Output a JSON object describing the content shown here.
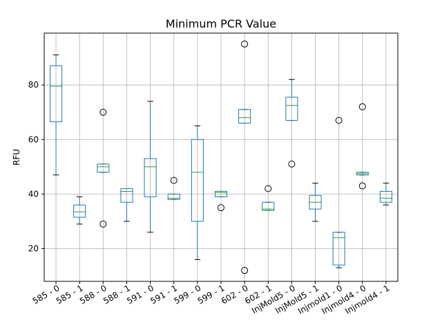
{
  "chart_data": {
    "type": "box",
    "title": "Minimum PCR Value",
    "xlabel": "",
    "ylabel": "RFU",
    "ylim": [
      8,
      99
    ],
    "yticks": [
      20,
      40,
      60,
      80
    ],
    "grid": true,
    "colors": {
      "box": "#1f77b4",
      "median": "#2ca02c",
      "grid": "#b0b0b0",
      "axis": "#000000"
    },
    "categories": [
      "585 - 0",
      "585 - 1",
      "588 - 0",
      "588 - 1",
      "591 - 0",
      "591 - 1",
      "599 - 0",
      "599 - 1",
      "602 - 0",
      "602 - 1",
      "InjMold5 - 0",
      "InjMold5 - 1",
      "Injmold1 - 0",
      "Injmold4 - 0",
      "Injmold4 - 1"
    ],
    "boxes": [
      {
        "whisker_low": 47,
        "q1": 66.5,
        "median": 79.5,
        "q3": 87,
        "whisker_high": 91,
        "outliers": []
      },
      {
        "whisker_low": 29,
        "q1": 31.5,
        "median": 33.5,
        "q3": 36,
        "whisker_high": 39,
        "outliers": []
      },
      {
        "whisker_low": 48,
        "q1": 48,
        "median": 50,
        "q3": 51,
        "whisker_high": 51,
        "outliers": [
          70,
          29
        ]
      },
      {
        "whisker_low": 30,
        "q1": 37,
        "median": 41,
        "q3": 42,
        "whisker_high": 42,
        "outliers": []
      },
      {
        "whisker_low": 26,
        "q1": 39,
        "median": 50,
        "q3": 53,
        "whisker_high": 74,
        "outliers": []
      },
      {
        "whisker_low": 38,
        "q1": 38,
        "median": 38.5,
        "q3": 40,
        "whisker_high": 40,
        "outliers": [
          45
        ]
      },
      {
        "whisker_low": 16,
        "q1": 30,
        "median": 48,
        "q3": 60,
        "whisker_high": 65,
        "outliers": []
      },
      {
        "whisker_low": 39,
        "q1": 39,
        "median": 40.5,
        "q3": 41,
        "whisker_high": 41,
        "outliers": [
          35
        ]
      },
      {
        "whisker_low": 66,
        "q1": 66,
        "median": 68,
        "q3": 71,
        "whisker_high": 71,
        "outliers": [
          95,
          12
        ]
      },
      {
        "whisker_low": 34,
        "q1": 34,
        "median": 34.5,
        "q3": 37,
        "whisker_high": 37,
        "outliers": [
          42
        ]
      },
      {
        "whisker_low": 67,
        "q1": 67,
        "median": 72.5,
        "q3": 75.5,
        "whisker_high": 82,
        "outliers": [
          51
        ]
      },
      {
        "whisker_low": 30,
        "q1": 34.5,
        "median": 37,
        "q3": 39.5,
        "whisker_high": 44,
        "outliers": []
      },
      {
        "whisker_low": 13,
        "q1": 14,
        "median": 24,
        "q3": 26,
        "whisker_high": 26,
        "outliers": [
          67
        ]
      },
      {
        "whisker_low": 47,
        "q1": 47,
        "median": 47.5,
        "q3": 48,
        "whisker_high": 48,
        "outliers": [
          72,
          43
        ]
      },
      {
        "whisker_low": 36,
        "q1": 37,
        "median": 38.5,
        "q3": 41,
        "whisker_high": 44,
        "outliers": []
      }
    ]
  }
}
